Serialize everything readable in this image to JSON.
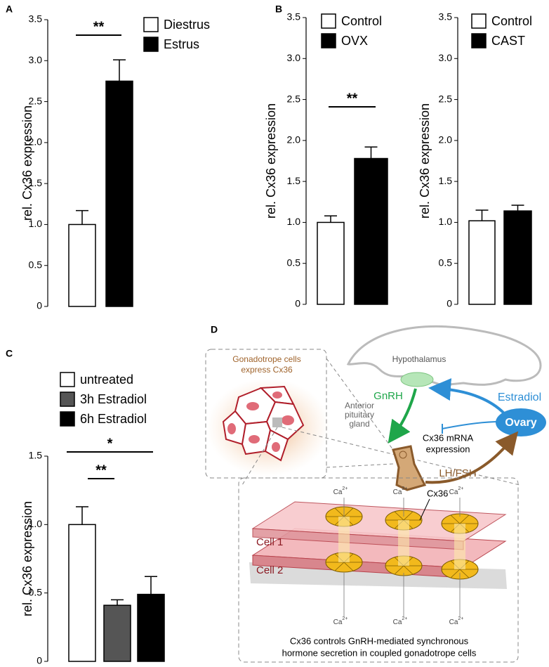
{
  "panel_labels": [
    "A",
    "B",
    "C",
    "D"
  ],
  "chart_data": [
    {
      "type": "bar",
      "ylabel": "rel. Cx36 expression",
      "series": [
        {
          "name": "Diestrus",
          "color": "#ffffff",
          "values": [
            1.0
          ],
          "errors": [
            0.17
          ]
        },
        {
          "name": "Estrus",
          "color": "#000000",
          "values": [
            2.75
          ],
          "errors": [
            0.26
          ]
        }
      ],
      "ylim": [
        0,
        3.5
      ],
      "yticks": [
        0,
        0.5,
        {
          "value": 1,
          "label": "1.0"
        },
        1.5,
        {
          "value": 2,
          "label": "2.0"
        },
        2.5,
        {
          "value": 3,
          "label": "3.0"
        },
        3.5
      ],
      "annotations": [
        "**"
      ],
      "grid": false
    },
    {
      "type": "bar",
      "ylabel": "rel. Cx36 expression",
      "series": [
        {
          "name": "Control",
          "color": "#ffffff",
          "values": [
            1.0
          ],
          "errors": [
            0.08
          ]
        },
        {
          "name": "OVX",
          "color": "#000000",
          "values": [
            1.78
          ],
          "errors": [
            0.14
          ]
        }
      ],
      "ylim": [
        0,
        3.5
      ],
      "yticks": [
        0,
        0.5,
        {
          "value": 1,
          "label": "1.0"
        },
        1.5,
        {
          "value": 2,
          "label": "2.0"
        },
        2.5,
        {
          "value": 3,
          "label": "3.0"
        },
        3.5
      ],
      "annotations": [
        "**"
      ],
      "grid": false
    },
    {
      "type": "bar",
      "ylabel": "rel. Cx36 expression",
      "series": [
        {
          "name": "Control",
          "color": "#ffffff",
          "values": [
            1.02
          ],
          "errors": [
            0.13
          ]
        },
        {
          "name": "CAST",
          "color": "#000000",
          "values": [
            1.14
          ],
          "errors": [
            0.07
          ]
        }
      ],
      "ylim": [
        0,
        3.5
      ],
      "yticks": [
        0,
        0.5,
        {
          "value": 1,
          "label": "1.0"
        },
        1.5,
        {
          "value": 2,
          "label": "2.0"
        },
        2.5,
        {
          "value": 3,
          "label": "3.0"
        },
        3.5
      ],
      "annotations": [],
      "grid": false
    },
    {
      "type": "bar",
      "ylabel": "rel. Cx36 expression",
      "series": [
        {
          "name": "untreated",
          "color": "#ffffff",
          "values": [
            1.0
          ],
          "errors": [
            0.13
          ]
        },
        {
          "name": "3h Estradiol",
          "color": "#555555",
          "values": [
            0.41
          ],
          "errors": [
            0.04
          ]
        },
        {
          "name": "6h Estradiol",
          "color": "#000000",
          "values": [
            0.49
          ],
          "errors": [
            0.13
          ]
        }
      ],
      "ylim": [
        0,
        1.5
      ],
      "yticks": [
        0,
        0.5,
        {
          "value": 1,
          "label": "1.0"
        },
        1.5
      ],
      "annotations": [
        "**",
        "*"
      ],
      "grid": false
    }
  ],
  "diagram": {
    "inset_title": [
      "Gonadotrope cells",
      "express Cx36"
    ],
    "hypothalamus": "Hypothalamus",
    "gnrh": "GnRH",
    "pituitary": [
      "Anterior",
      "pituitary",
      "gland"
    ],
    "estradiol": "Estradiol",
    "ovary": "Ovary",
    "mrna": [
      "Cx36 mRNA",
      "expression"
    ],
    "lhfsh": "LH/FSH",
    "ion": {
      "base": "Ca",
      "sup": "2+"
    },
    "connexin": "Cx36",
    "cell1": "Cell 1",
    "cell2": "Cell 2",
    "caption": [
      "Cx36 controls GnRH-mediated synchronous",
      "hormone secretion in coupled gonadotrope cells"
    ]
  }
}
